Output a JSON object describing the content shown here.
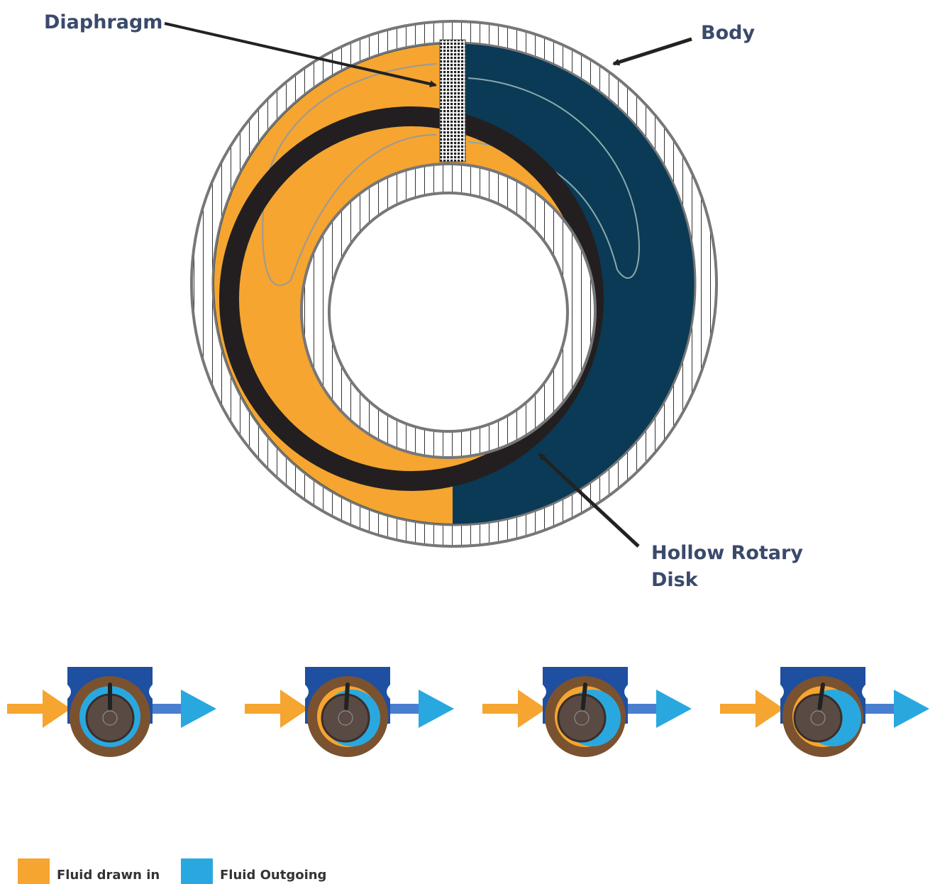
{
  "labels": {
    "diaphragm": "Diaphragm",
    "body": "Body",
    "disk": [
      "Hollow Rotary",
      "Disk"
    ]
  },
  "legend": [
    {
      "name": "Fluid drawn in",
      "color": "#f5a530"
    },
    {
      "name": "Fluid Outgoing",
      "color": "#29a8e0"
    }
  ]
}
